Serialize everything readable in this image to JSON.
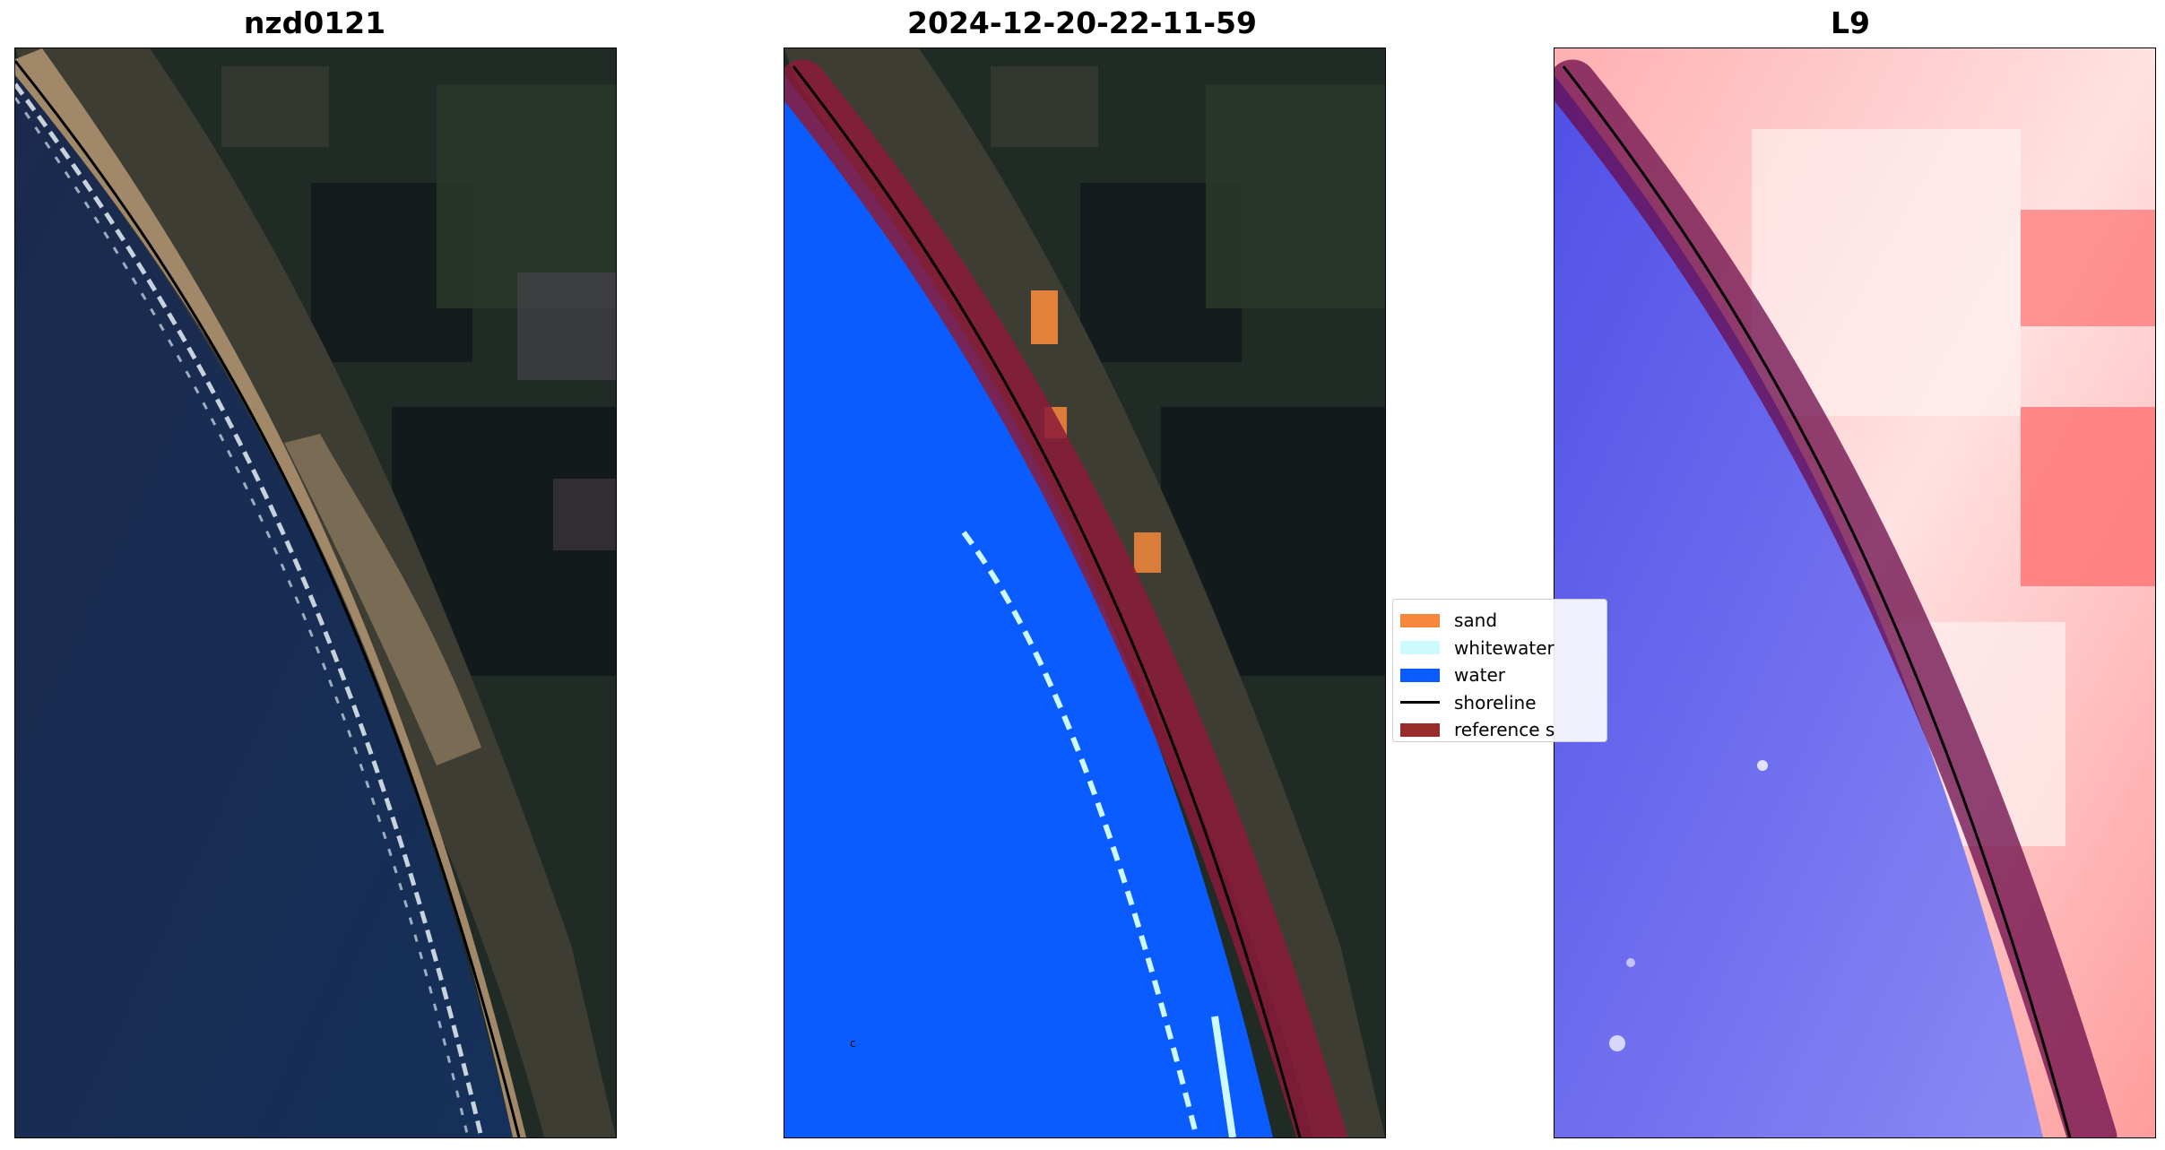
{
  "panels": [
    {
      "title": "nzd0121",
      "view": "rgb-satellite"
    },
    {
      "title": "2024-12-20-22-11-59",
      "view": "classified"
    },
    {
      "title": "L9",
      "view": "water-index"
    }
  ],
  "legend": {
    "items": [
      {
        "label": "sand",
        "kind": "patch",
        "color": "#f5883a"
      },
      {
        "label": "whitewater",
        "kind": "patch",
        "color": "#ccfaff"
      },
      {
        "label": "water",
        "kind": "patch",
        "color": "#0a5cff"
      },
      {
        "label": "shoreline",
        "kind": "line",
        "color": "#000000"
      },
      {
        "label": "reference s",
        "kind": "patch",
        "color": "#9b2c2e"
      }
    ]
  },
  "colors": {
    "ocean": "#1a2a4a",
    "land": "#1e2a22",
    "beach": "#9c8566",
    "surf": "#e8f0f5",
    "water_class": "#0a5cff",
    "reference_band": "#8b1a3a",
    "index_land": "#ff9a9a",
    "index_water": "#6a6af0"
  },
  "marks": {
    "small_label": "c"
  }
}
